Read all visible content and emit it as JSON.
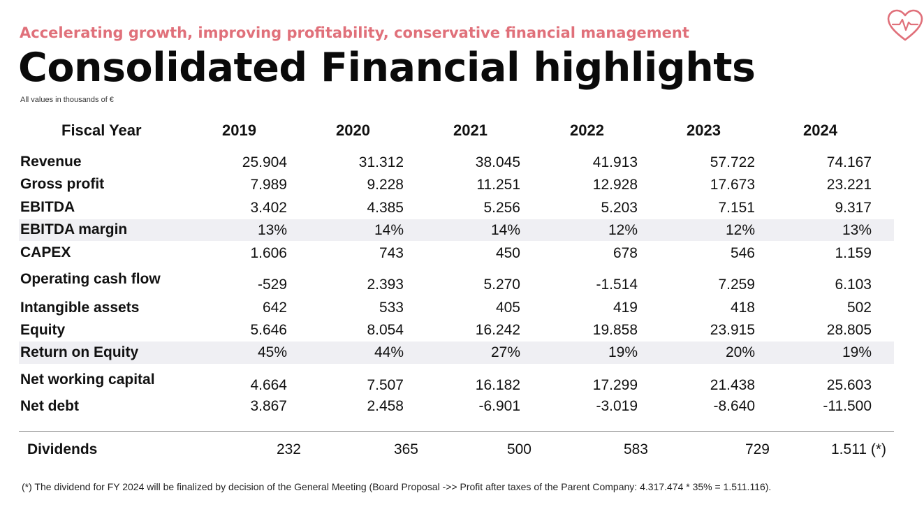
{
  "subtitle": "Accelerating growth, improving profitability, conservative financial management",
  "title": "Consolidated Financial highlights",
  "units_note": "All values in thousands of €",
  "logo_icon": "heart-pulse-icon",
  "accent_color": "#e0707a",
  "header": {
    "label": "Fiscal Year",
    "years": [
      "2019",
      "2020",
      "2021",
      "2022",
      "2023",
      "2024"
    ]
  },
  "rows": [
    {
      "label": "Revenue",
      "values": [
        "25.904",
        "31.312",
        "38.045",
        "41.913",
        "57.722",
        "74.167"
      ],
      "shaded": false
    },
    {
      "label": "Gross profit",
      "values": [
        "7.989",
        "9.228",
        "11.251",
        "12.928",
        "17.673",
        "23.221"
      ],
      "shaded": false
    },
    {
      "label": "EBITDA",
      "values": [
        "3.402",
        "4.385",
        "5.256",
        "5.203",
        "7.151",
        "9.317"
      ],
      "shaded": false
    },
    {
      "label": "EBITDA margin",
      "values": [
        "13%",
        "14%",
        "14%",
        "12%",
        "12%",
        "13%"
      ],
      "shaded": true
    },
    {
      "label": "CAPEX",
      "values": [
        "1.606",
        "743",
        "450",
        "678",
        "546",
        "1.159"
      ],
      "shaded": false
    },
    {
      "label": "Operating cash flow",
      "values": [
        "-529",
        "2.393",
        "5.270",
        "-1.514",
        "7.259",
        "6.103"
      ],
      "shaded": false
    },
    {
      "label": "Intangible assets",
      "values": [
        "642",
        "533",
        "405",
        "419",
        "418",
        "502"
      ],
      "shaded": false
    },
    {
      "label": "Equity",
      "values": [
        "5.646",
        "8.054",
        "16.242",
        "19.858",
        "23.915",
        "28.805"
      ],
      "shaded": false
    },
    {
      "label": "Return on Equity",
      "values": [
        "45%",
        "44%",
        "27%",
        "19%",
        "20%",
        "19%"
      ],
      "shaded": true
    },
    {
      "label": "Net working capital",
      "values": [
        "4.664",
        "7.507",
        "16.182",
        "17.299",
        "21.438",
        "25.603"
      ],
      "shaded": false
    },
    {
      "label": "Net debt",
      "values": [
        "3.867",
        "2.458",
        "-6.901",
        "-3.019",
        "-8.640",
        "-11.500"
      ],
      "shaded": false
    }
  ],
  "dividends": {
    "label": "Dividends",
    "values": [
      "232",
      "365",
      "500",
      "583",
      "729",
      "1.511 (*)"
    ]
  },
  "footnote": "(*) The dividend for FY 2024 will be finalized by decision of the General Meeting (Board Proposal ->> Profit after taxes of the Parent Company: 4.317.474 * 35% = 1.511.116)."
}
